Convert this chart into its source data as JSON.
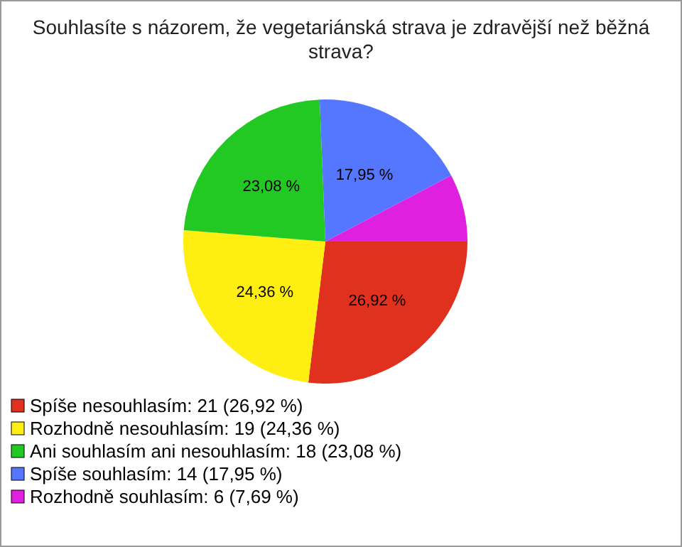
{
  "chart_data": {
    "type": "pie",
    "title": "Souhlasíte s názorem, že vegetariánská strava je zdravější než běžná strava?",
    "categories": [
      "Spíše nesouhlasím: 21 (26,92 %)",
      "Rozhodně nesouhlasím: 19 (24,36 %)",
      "Ani souhlasím ani nesouhlasím: 18 (23,08 %)",
      "Spíše souhlasím: 14 (17,95 %)",
      "Rozhodně souhlasím: 6 (7,69 %)"
    ],
    "values": [
      26.92,
      24.36,
      23.08,
      17.95,
      7.69
    ],
    "value_labels": [
      "26,92 %",
      "24,36 %",
      "23,08 %",
      "17,95 %",
      null
    ],
    "colors": [
      "#e0301e",
      "#ffee11",
      "#22c922",
      "#5577ff",
      "#e020e0"
    ],
    "legend": "bottom left"
  }
}
